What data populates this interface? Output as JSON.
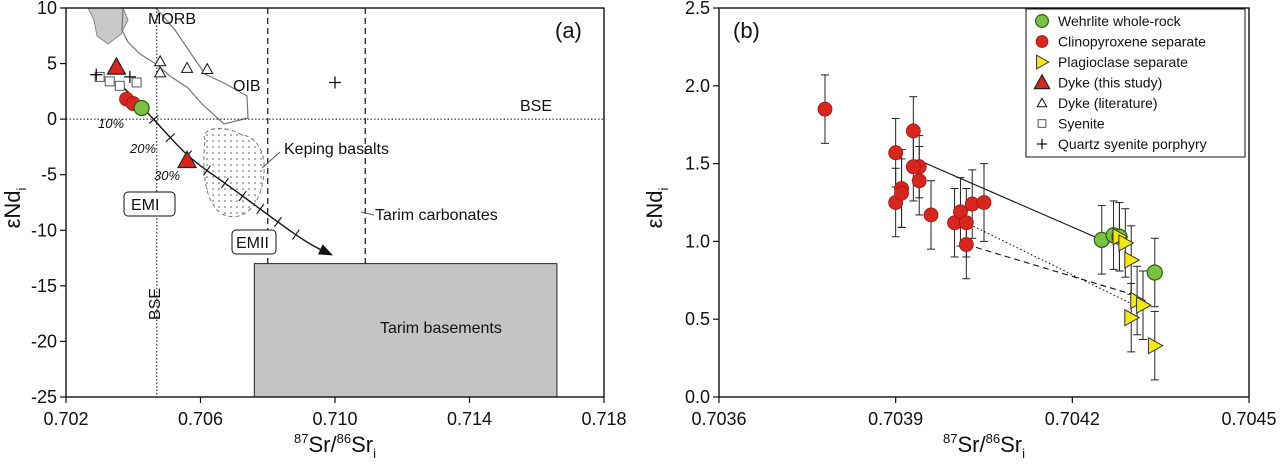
{
  "chart_data": [
    {
      "panel": "(a)",
      "type": "scatter",
      "xlabel_base": "Sr/",
      "xlabel_sup1": "87",
      "xlabel_sup2": "86",
      "xlabel_tail": "Sr",
      "xlabel_sub": "i",
      "ylabel_main": "εNd",
      "ylabel_sub": "i",
      "xlim": [
        0.702,
        0.718
      ],
      "ylim": [
        -25,
        10
      ],
      "xticks": [
        "0.702",
        "0.706",
        "0.710",
        "0.714",
        "0.718"
      ],
      "xtick_values": [
        0.702,
        0.706,
        0.71,
        0.714,
        0.718
      ],
      "yticks": [
        "10",
        "5",
        "0",
        "-5",
        "-10",
        "-15",
        "-20",
        "-25"
      ],
      "ytick_values": [
        10,
        5,
        0,
        -5,
        -10,
        -15,
        -20,
        -25
      ],
      "reference_lines": {
        "bse_x": 0.7047,
        "bse_y": 0,
        "tarim_dashed_1": 0.708,
        "tarim_dashed_2": 0.7109
      },
      "region_labels": {
        "morb": "MORB",
        "oib": "OIB",
        "bse_h": "BSE",
        "bse_v": "BSE",
        "keping": "Keping basalts",
        "tarim_carb": "Tarim carbonates",
        "emi": "EMI",
        "emii": "EMII",
        "tarim_base": "Tarim basements"
      },
      "mixing_labels": [
        "10%",
        "20%",
        "30%"
      ],
      "tarim_basements_box": {
        "x": [
          0.7076,
          0.7166
        ],
        "y": [
          -25,
          -13
        ]
      },
      "mixing_curve": [
        [
          0.7036,
          3.2
        ],
        [
          0.7043,
          1.0
        ],
        [
          0.7049,
          -1.0
        ],
        [
          0.7057,
          -3.6
        ],
        [
          0.7068,
          -5.9
        ],
        [
          0.708,
          -8.6
        ],
        [
          0.7092,
          -11.2
        ],
        [
          0.7099,
          -12.2
        ]
      ],
      "series": [
        {
          "name": "Dyke (this study)",
          "marker": "triangle-red",
          "x": [
            0.7035,
            0.7056
          ],
          "y": [
            4.7,
            -3.7
          ]
        },
        {
          "name": "Wehrlite whole-rock",
          "marker": "circle-green",
          "x": [
            0.70425
          ],
          "y": [
            1.0
          ]
        },
        {
          "name": "Clinopyroxene separate",
          "marker": "circle-red",
          "x": [
            0.7038,
            0.704
          ],
          "y": [
            1.8,
            1.4
          ]
        },
        {
          "name": "Dyke (literature)",
          "marker": "triangle-open",
          "x": [
            0.7048,
            0.7048,
            0.7056,
            0.7062
          ],
          "y": [
            5.2,
            4.2,
            4.6,
            4.5
          ]
        },
        {
          "name": "Syenite",
          "marker": "square-open",
          "x": [
            0.703,
            0.7033,
            0.7036,
            0.7041
          ],
          "y": [
            3.8,
            3.4,
            3.0,
            3.3
          ]
        },
        {
          "name": "Quartz syenite porphyry",
          "marker": "plus",
          "x": [
            0.7029,
            0.7039,
            0.71
          ],
          "y": [
            4.0,
            3.8,
            3.3
          ]
        }
      ]
    },
    {
      "panel": "(b)",
      "type": "scatter",
      "xlabel_base": "Sr/",
      "xlabel_sup1": "87",
      "xlabel_sup2": "86",
      "xlabel_tail": "Sr",
      "xlabel_sub": "i",
      "ylabel_main": "εNd",
      "ylabel_sub": "i",
      "xlim": [
        0.7036,
        0.7045
      ],
      "ylim": [
        0.0,
        2.5
      ],
      "xticks": [
        "0.7036",
        "0.7039",
        "0.7042",
        "0.7045"
      ],
      "xtick_values": [
        0.7036,
        0.7039,
        0.7042,
        0.7045
      ],
      "yticks": [
        "2.5",
        "2.0",
        "1.5",
        "1.0",
        "0.5",
        "0.0"
      ],
      "ytick_values": [
        2.5,
        2.0,
        1.5,
        1.0,
        0.5,
        0.0
      ],
      "legend": {
        "position": "top-right",
        "entries": [
          {
            "label": "Wehrlite whole-rock",
            "marker": "circle-green"
          },
          {
            "label": "Clinopyroxene separate",
            "marker": "circle-red"
          },
          {
            "label": "Plagioclase separate",
            "marker": "triangle-right-yellow"
          },
          {
            "label": "Dyke (this study)",
            "marker": "triangle-red"
          },
          {
            "label": "Dyke (literature)",
            "marker": "triangle-open"
          },
          {
            "label": "Syenite",
            "marker": "square-open"
          },
          {
            "label": "Quartz syenite porphyry",
            "marker": "plus"
          }
        ]
      },
      "tie_lines": [
        {
          "style": "solid",
          "points": [
            [
              0.70394,
              1.52
            ],
            [
              0.70425,
              1.01
            ]
          ]
        },
        {
          "style": "dotted",
          "points": [
            [
              0.70402,
              1.12
            ],
            [
              0.7043,
              0.6
            ]
          ]
        },
        {
          "style": "dashed",
          "points": [
            [
              0.70402,
              0.98
            ],
            [
              0.70431,
              0.65
            ]
          ]
        }
      ],
      "series": [
        {
          "name": "Clinopyroxene separate",
          "marker": "circle-red",
          "x": [
            0.70378,
            0.7039,
            0.7039,
            0.70391,
            0.70391,
            0.70393,
            0.70394,
            0.70393,
            0.70394,
            0.70396,
            0.704,
            0.70401,
            0.70402,
            0.70403,
            0.70402,
            0.70405
          ],
          "y": [
            1.85,
            1.57,
            1.25,
            1.34,
            1.31,
            1.71,
            1.48,
            1.48,
            1.39,
            1.17,
            1.12,
            1.19,
            1.12,
            1.24,
            0.98,
            1.25
          ],
          "err": [
            0.22,
            0.22,
            0.22,
            0.25,
            0.22,
            0.22,
            0.2,
            0.22,
            0.22,
            0.22,
            0.22,
            0.22,
            0.22,
            0.22,
            0.22,
            0.25
          ]
        },
        {
          "name": "Wehrlite whole-rock",
          "marker": "circle-green",
          "x": [
            0.70425,
            0.70427,
            0.70428,
            0.70434
          ],
          "y": [
            1.01,
            1.04,
            1.03,
            0.8
          ],
          "err": [
            0.22,
            0.22,
            0.22,
            0.22
          ]
        },
        {
          "name": "Plagioclase separate",
          "marker": "triangle-right-yellow",
          "x": [
            0.70428,
            0.70429,
            0.7043,
            0.70431,
            0.7043,
            0.70432,
            0.70434
          ],
          "y": [
            1.03,
            0.99,
            0.88,
            0.62,
            0.51,
            0.59,
            0.33
          ],
          "err": [
            0.22,
            0.22,
            0.22,
            0.22,
            0.22,
            0.22,
            0.22
          ]
        }
      ]
    }
  ]
}
